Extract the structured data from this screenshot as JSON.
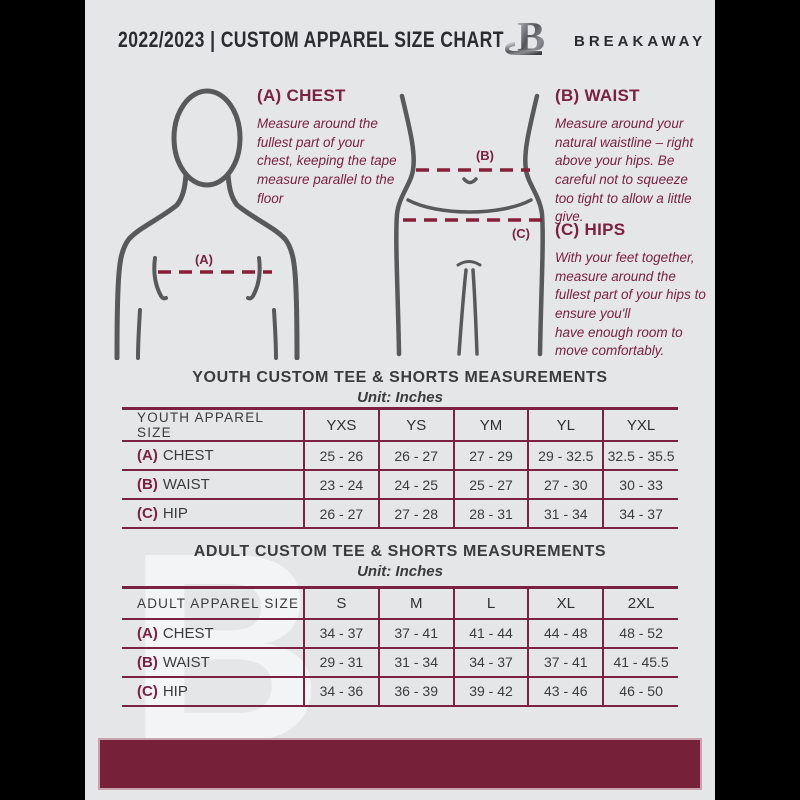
{
  "header": {
    "title": "2022/2023  |  CUSTOM APPAREL SIZE CHART",
    "brand": "BREAKAWAY",
    "logo_letter": "B"
  },
  "instructions": {
    "chest": {
      "heading": "(A) CHEST",
      "body": "Measure around the fullest part of your chest, keeping the tape measure parallel to the floor"
    },
    "waist": {
      "heading": "(B) WAIST",
      "body": "Measure around your natural waistline – right above your hips. Be careful not to squeeze too tight to allow a little give."
    },
    "hips": {
      "heading": "(C) HIPS",
      "body": "With your feet together, measure around the fullest part of your hips to ensure you'll\nhave enough room to move comfortably."
    }
  },
  "diagram_labels": {
    "chest": "(A)",
    "waist": "(B)",
    "hips": "(C)"
  },
  "youth": {
    "title": "YOUTH CUSTOM TEE & SHORTS MEASUREMENTS",
    "unit": "Unit: Inches",
    "size_header": "YOUTH APPAREL SIZE",
    "sizes": [
      "YXS",
      "YS",
      "YM",
      "YL",
      "YXL"
    ],
    "rows": [
      {
        "key": "(A)",
        "label": "CHEST",
        "values": [
          "25 - 26",
          "26 - 27",
          "27 - 29",
          "29 - 32.5",
          "32.5 - 35.5"
        ]
      },
      {
        "key": "(B)",
        "label": "WAIST",
        "values": [
          "23 - 24",
          "24 - 25",
          "25 - 27",
          "27 - 30",
          "30 - 33"
        ]
      },
      {
        "key": "(C)",
        "label": "HIP",
        "values": [
          "26 - 27",
          "27 - 28",
          "28 - 31",
          "31 - 34",
          "34 - 37"
        ]
      }
    ]
  },
  "adult": {
    "title": "ADULT CUSTOM TEE & SHORTS MEASUREMENTS",
    "unit": "Unit: Inches",
    "size_header": "ADULT APPAREL SIZE",
    "sizes": [
      "S",
      "M",
      "L",
      "XL",
      "2XL"
    ],
    "rows": [
      {
        "key": "(A)",
        "label": "CHEST",
        "values": [
          "34 - 37",
          "37 - 41",
          "41 - 44",
          "44 - 48",
          "48 - 52"
        ]
      },
      {
        "key": "(B)",
        "label": "WAIST",
        "values": [
          "29 - 31",
          "31 - 34",
          "34 - 37",
          "37 - 41",
          "41 - 45.5"
        ]
      },
      {
        "key": "(C)",
        "label": "HIP",
        "values": [
          "34 - 36",
          "36 - 39",
          "39 - 42",
          "43 - 46",
          "46 - 50"
        ]
      }
    ]
  },
  "colors": {
    "background": "#e5e6e8",
    "maroon_text": "#7b2140",
    "table_border": "#7b2240",
    "dash_line": "#871f38",
    "figure_gray": "#58595b",
    "footer_bar": "#76203a",
    "header_text": "#2b2c30",
    "pillarbox": "#000000"
  }
}
